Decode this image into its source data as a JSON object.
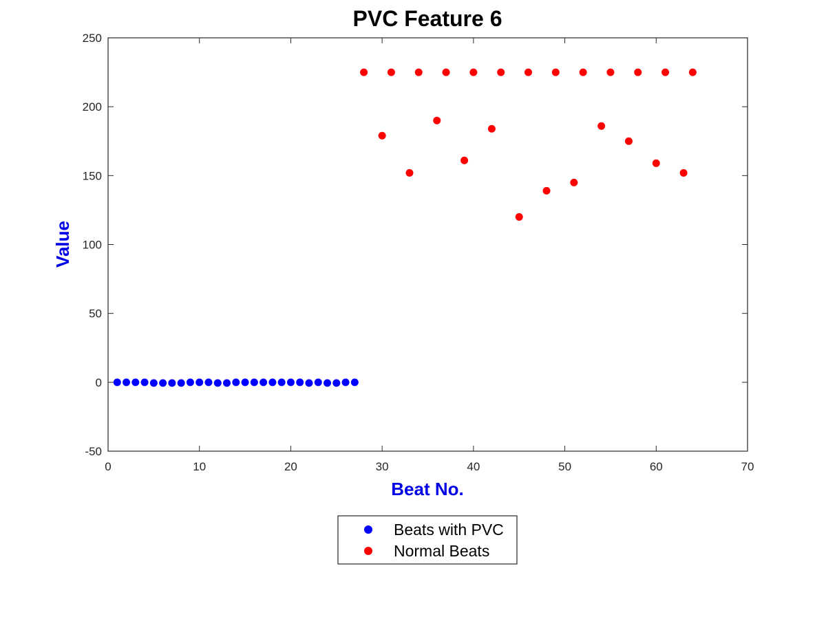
{
  "chart_data": {
    "type": "scatter",
    "title": "PVC Feature 6",
    "xlabel": "Beat No.",
    "ylabel": "Value",
    "xlim": [
      0,
      70
    ],
    "ylim": [
      -50,
      250
    ],
    "xticks": [
      0,
      10,
      20,
      30,
      40,
      50,
      60,
      70
    ],
    "yticks": [
      -50,
      0,
      50,
      100,
      150,
      200,
      250
    ],
    "xtick_labels": [
      "0",
      "10",
      "20",
      "30",
      "40",
      "50",
      "60",
      "70"
    ],
    "ytick_labels": [
      "-50",
      "0",
      "50",
      "100",
      "150",
      "200",
      "250"
    ],
    "grid": false,
    "legend_position": "bottom-center, outside plot",
    "series": [
      {
        "name": "Beats with PVC",
        "color": "#0000ff",
        "x": [
          1,
          2,
          3,
          4,
          5,
          6,
          7,
          8,
          9,
          10,
          11,
          12,
          13,
          14,
          15,
          16,
          17,
          18,
          19,
          20,
          21,
          22,
          23,
          24,
          25,
          26,
          27
        ],
        "y": [
          0,
          0,
          0,
          0,
          -0.5,
          -0.5,
          -0.5,
          -0.5,
          0,
          0,
          0,
          -0.5,
          -0.5,
          0,
          0,
          0,
          0,
          0,
          0,
          0,
          0,
          -0.5,
          0,
          -0.5,
          -0.5,
          0,
          0
        ]
      },
      {
        "name": "Normal Beats",
        "color": "#ff0000",
        "x": [
          28,
          30,
          31,
          33,
          34,
          36,
          37,
          39,
          40,
          42,
          43,
          45,
          46,
          48,
          49,
          51,
          52,
          54,
          55,
          57,
          58,
          60,
          61,
          63,
          64
        ],
        "y": [
          225,
          179,
          225,
          152,
          225,
          190,
          225,
          161,
          225,
          184,
          225,
          120,
          225,
          139,
          225,
          145,
          225,
          186,
          225,
          175,
          225,
          159,
          225,
          152,
          225
        ]
      }
    ]
  }
}
